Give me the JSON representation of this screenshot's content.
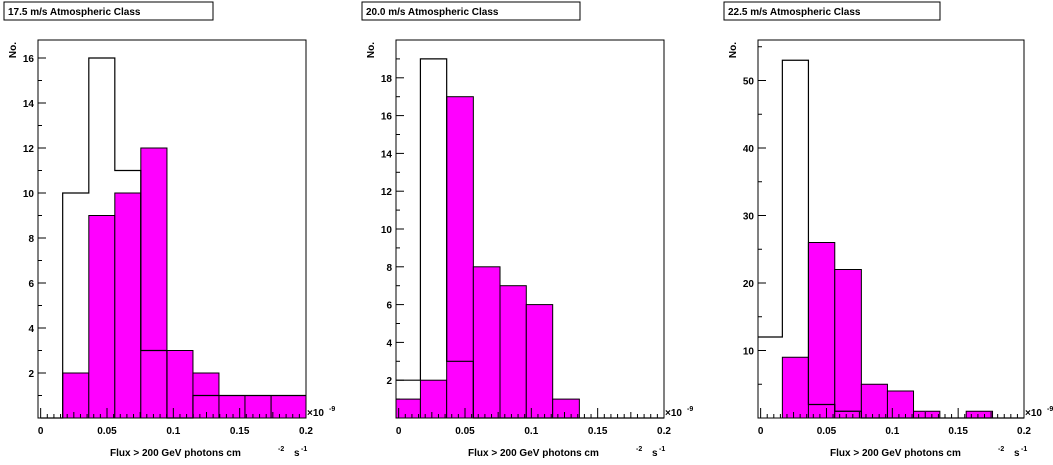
{
  "chart_data": [
    {
      "type": "histogram",
      "title": "17.5 m/s Atmospheric Class",
      "xlabel": "Flux > 200 GeV photons cm",
      "xlabel_sup": "-2",
      "xlabel_tail": "s",
      "xlabel_tail_sup": "-1",
      "ylabel": "No.",
      "exponent_label": "×10",
      "exponent_sup": "-9",
      "xlim": [
        -0.002,
        0.2
      ],
      "ylim": [
        0,
        16.8
      ],
      "xticks": [
        0,
        0.05,
        0.1,
        0.15,
        0.2
      ],
      "xtick_labels": [
        "0",
        "0.05",
        "0.1",
        "0.15",
        "0.2"
      ],
      "yticks": [
        2,
        4,
        6,
        8,
        10,
        12,
        14,
        16
      ],
      "ytick_labels": [
        "2",
        "4",
        "6",
        "8",
        "10",
        "12",
        "14",
        "16"
      ],
      "bin_edges": [
        0.0,
        0.0166,
        0.0363,
        0.0559,
        0.0755,
        0.0952,
        0.1148,
        0.1344,
        0.154,
        0.1737,
        0.2
      ],
      "series": [
        {
          "fill": "none",
          "values": [
            0,
            10,
            16,
            11,
            3,
            0,
            1,
            1,
            1,
            1
          ]
        },
        {
          "fill": "#ff00ff",
          "values": [
            0,
            2,
            9,
            10,
            12,
            3,
            2,
            1,
            1,
            1
          ]
        }
      ]
    },
    {
      "type": "histogram",
      "title": "20.0 m/s Atmospheric Class",
      "xlabel": "Flux > 200 GeV photons cm",
      "xlabel_sup": "-2",
      "xlabel_tail": "s",
      "xlabel_tail_sup": "-1",
      "ylabel": "No.",
      "exponent_label": "×10",
      "exponent_sup": "-9",
      "xlim": [
        -0.002,
        0.2
      ],
      "ylim": [
        0,
        20
      ],
      "xticks": [
        0,
        0.05,
        0.1,
        0.15,
        0.2
      ],
      "xtick_labels": [
        "0",
        "0.05",
        "0.1",
        "0.15",
        "0.2"
      ],
      "yticks": [
        2,
        4,
        6,
        8,
        10,
        12,
        14,
        16,
        18
      ],
      "ytick_labels": [
        "2",
        "4",
        "6",
        "8",
        "10",
        "12",
        "14",
        "16",
        "18"
      ],
      "bin_edges": [
        -0.002,
        0.0164,
        0.0362,
        0.0563,
        0.0764,
        0.0962,
        0.1161,
        0.1362,
        0.2
      ],
      "series": [
        {
          "fill": "none",
          "values": [
            2,
            19,
            3,
            0,
            0,
            0,
            0,
            0
          ]
        },
        {
          "fill": "#ff00ff",
          "values": [
            1,
            2,
            17,
            8,
            7,
            6,
            1,
            0
          ]
        }
      ]
    },
    {
      "type": "histogram",
      "title": "22.5 m/s Atmospheric Class",
      "xlabel": "Flux > 200 GeV photons cm",
      "xlabel_sup": "-2",
      "xlabel_tail": "s",
      "xlabel_tail_sup": "-1",
      "ylabel": "No.",
      "exponent_label": "×10",
      "exponent_sup": "-9",
      "xlim": [
        -0.002,
        0.2
      ],
      "ylim": [
        0,
        56
      ],
      "xticks": [
        0,
        0.05,
        0.1,
        0.15,
        0.2
      ],
      "xtick_labels": [
        "0",
        "0.05",
        "0.1",
        "0.15",
        "0.2"
      ],
      "yticks": [
        10,
        20,
        30,
        40,
        50
      ],
      "ytick_labels": [
        "10",
        "20",
        "30",
        "40",
        "50"
      ],
      "bin_edges": [
        -0.002,
        0.0165,
        0.0363,
        0.0563,
        0.0765,
        0.0963,
        0.1161,
        0.1361,
        0.1561,
        0.1761,
        0.2
      ],
      "series": [
        {
          "fill": "none",
          "values": [
            12,
            53,
            2,
            1,
            0,
            0,
            0,
            0,
            0,
            0
          ]
        },
        {
          "fill": "#ff00ff",
          "values": [
            0,
            9,
            26,
            22,
            5,
            4,
            1,
            0,
            1,
            0
          ]
        }
      ]
    }
  ]
}
